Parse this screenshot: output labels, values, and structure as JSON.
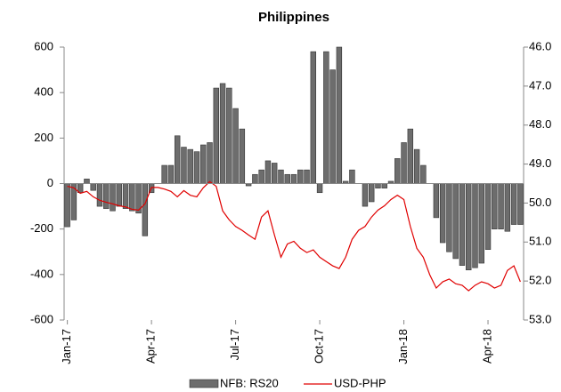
{
  "chart_data": {
    "type": "bar-line",
    "title": "Philippines",
    "x": [
      0,
      1,
      2,
      3,
      4,
      5,
      6,
      7,
      8,
      9,
      10,
      11,
      12,
      13,
      14,
      15,
      16,
      17,
      18,
      19,
      20,
      21,
      22,
      23,
      24,
      25,
      26,
      27,
      28,
      29,
      30,
      31,
      32,
      33,
      34,
      35,
      36,
      37,
      38,
      39,
      40,
      41,
      42,
      43,
      44,
      45,
      46,
      47,
      48,
      49,
      50,
      51,
      52,
      53,
      54,
      55,
      56,
      57,
      58,
      59,
      60,
      61,
      62,
      63,
      64,
      65,
      66,
      67,
      68,
      69,
      70
    ],
    "xlim": [
      -0.5,
      70.5
    ],
    "xticks": [
      {
        "value": 0,
        "label": "Jan-17"
      },
      {
        "value": 13,
        "label": "Apr-17"
      },
      {
        "value": 26,
        "label": "Jul-17"
      },
      {
        "value": 39,
        "label": "Oct-17"
      },
      {
        "value": 52,
        "label": "Jan-18"
      },
      {
        "value": 65,
        "label": "Apr-18"
      }
    ],
    "ylim": [
      -600,
      600
    ],
    "yticks": [
      600,
      400,
      200,
      0,
      -200,
      -400,
      -600
    ],
    "y2lim": [
      53,
      46
    ],
    "y2_inverted": true,
    "y2ticks": [
      {
        "value": 46,
        "label": "46.0"
      },
      {
        "value": 47,
        "label": "47.0"
      },
      {
        "value": 48,
        "label": "48.0"
      },
      {
        "value": 49,
        "label": "49.0"
      },
      {
        "value": 50,
        "label": "50.0"
      },
      {
        "value": 51,
        "label": "51.0"
      },
      {
        "value": 52,
        "label": "52.0"
      },
      {
        "value": 53,
        "label": "53.0"
      }
    ],
    "series": [
      {
        "name": "NFB: RS20",
        "type": "bar",
        "color": "#6d6d6d",
        "values": [
          -190,
          -160,
          -40,
          20,
          -30,
          -100,
          -110,
          -120,
          -100,
          -110,
          -120,
          -130,
          -230,
          -40,
          0,
          80,
          80,
          210,
          160,
          150,
          140,
          170,
          180,
          420,
          440,
          420,
          330,
          240,
          -10,
          40,
          60,
          100,
          90,
          60,
          40,
          40,
          60,
          60,
          580,
          -40,
          580,
          500,
          600,
          10,
          60,
          0,
          -100,
          -80,
          -20,
          -20,
          10,
          110,
          180,
          240,
          150,
          80,
          0,
          -150,
          -260,
          -300,
          -330,
          -360,
          -380,
          -370,
          -350,
          -290,
          -200,
          -200,
          -210,
          -180,
          -180
        ]
      },
      {
        "name": "USD-PHP",
        "type": "line",
        "axis": "y2",
        "color": "#e00000",
        "values": [
          49.57,
          49.61,
          49.75,
          49.7,
          49.84,
          49.93,
          49.98,
          50.02,
          50.07,
          50.1,
          50.16,
          50.18,
          50.02,
          49.6,
          49.6,
          49.64,
          49.7,
          49.84,
          49.68,
          49.8,
          49.84,
          49.61,
          49.45,
          49.57,
          50.2,
          50.43,
          50.6,
          50.7,
          50.82,
          50.93,
          50.36,
          50.2,
          50.82,
          51.39,
          51.05,
          50.98,
          51.16,
          51.27,
          51.2,
          51.39,
          51.5,
          51.61,
          51.68,
          51.39,
          50.93,
          50.7,
          50.6,
          50.36,
          50.18,
          50.07,
          49.91,
          49.8,
          49.91,
          50.6,
          51.16,
          51.39,
          51.84,
          52.18,
          52.02,
          51.95,
          52.07,
          52.11,
          52.25,
          52.11,
          52.02,
          52.07,
          52.18,
          52.11,
          51.73,
          51.61,
          52.02
        ]
      }
    ]
  }
}
